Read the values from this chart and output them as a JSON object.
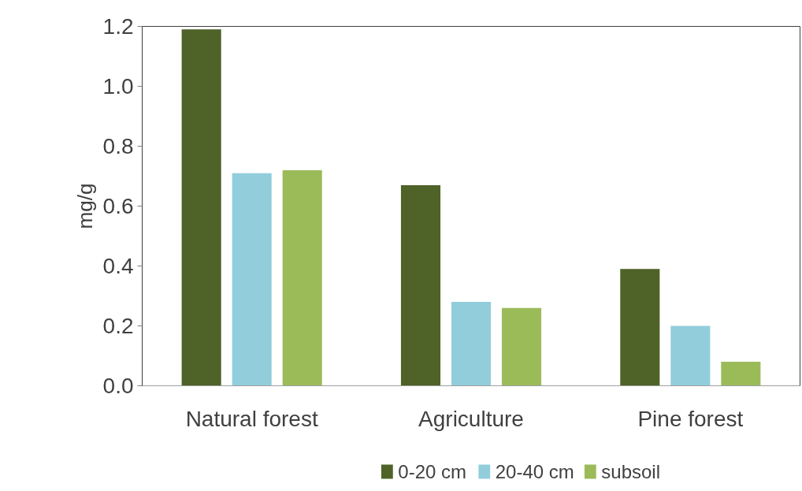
{
  "chart_data": {
    "type": "bar",
    "ylabel": "mg/g",
    "categories": [
      "Natural forest",
      "Agriculture",
      "Pine forest"
    ],
    "series": [
      {
        "name": "0-20 cm",
        "color": "#4f6228",
        "values": [
          1.19,
          0.67,
          0.39
        ]
      },
      {
        "name": "20-40 cm",
        "color": "#92cddc",
        "values": [
          0.71,
          0.28,
          0.2
        ]
      },
      {
        "name": "subsoil",
        "color": "#9bbb59",
        "values": [
          0.72,
          0.26,
          0.08
        ]
      }
    ],
    "ylim": [
      0,
      1.2
    ],
    "yticks": [
      {
        "value": 0,
        "label": "0.0"
      },
      0.2,
      0.4,
      0.6,
      0.8,
      {
        "value": 1,
        "label": "1.0"
      },
      1.2
    ],
    "grid": false,
    "legend": "bottom"
  }
}
